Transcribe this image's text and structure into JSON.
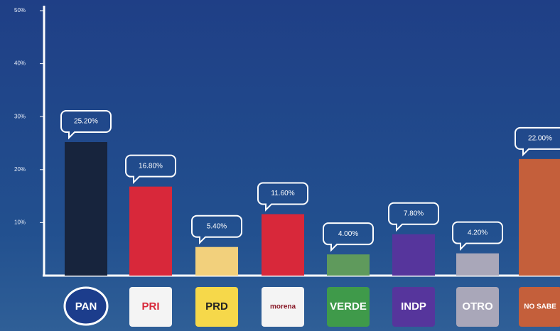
{
  "chart_data": {
    "type": "bar",
    "categories": [
      "PAN",
      "PRI",
      "PRD",
      "morena",
      "VERDE",
      "INDP",
      "OTRO",
      "NO SABE"
    ],
    "values": [
      25.2,
      16.8,
      5.4,
      11.6,
      4.0,
      7.8,
      4.2,
      22.0
    ],
    "value_labels": [
      "25.20%",
      "16.80%",
      "5.40%",
      "11.60%",
      "4.00%",
      "7.80%",
      "4.20%",
      "22.00%"
    ],
    "colors": [
      "#17243d",
      "#d8283a",
      "#f2d07c",
      "#d8283a",
      "#5f9a5c",
      "#56359c",
      "#a9a7b9",
      "#c45f3b"
    ],
    "ylim": [
      0,
      50
    ],
    "yticks": [
      {
        "value": 10,
        "label": "10%"
      },
      {
        "value": 20,
        "label": "20%"
      },
      {
        "value": 30,
        "label": "30%"
      },
      {
        "value": 40,
        "label": "40%"
      },
      {
        "value": 50,
        "label": "50%"
      }
    ]
  }
}
